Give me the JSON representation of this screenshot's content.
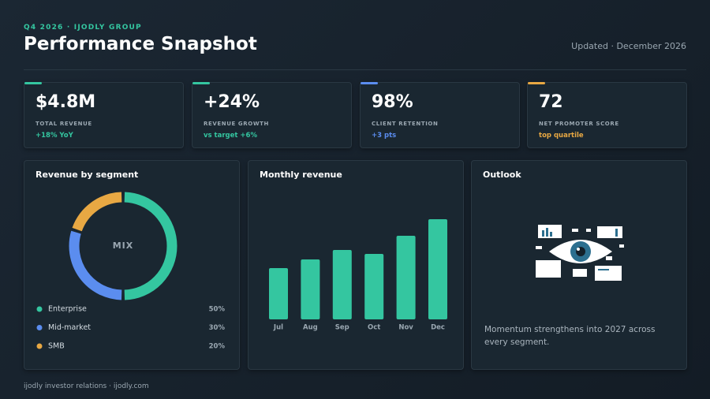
{
  "header": {
    "eyebrow": "Q4 2026 · IJODLY GROUP",
    "title": "Performance Snapshot",
    "updated": "Updated · December 2026"
  },
  "kpis": [
    {
      "value": "$4.8M",
      "label": "TOTAL REVENUE",
      "note": "+18% YoY",
      "color": "#34c6a0"
    },
    {
      "value": "+24%",
      "label": "REVENUE GROWTH",
      "note": "vs target +6%",
      "color": "#34c6a0"
    },
    {
      "value": "98%",
      "label": "CLIENT RETENTION",
      "note": "+3 pts",
      "color": "#5b8def"
    },
    {
      "value": "72",
      "label": "NET PROMOTER SCORE",
      "note": "top quartile",
      "color": "#e8a843"
    }
  ],
  "chart_data": [
    {
      "type": "donut",
      "title": "Revenue by segment",
      "center_label": "MIX",
      "categories": [
        "Enterprise",
        "Mid-market",
        "SMB"
      ],
      "values": [
        50,
        30,
        20
      ],
      "value_labels": [
        "50%",
        "30%",
        "20%"
      ],
      "colors": [
        "#34c6a0",
        "#5b8def",
        "#e8a843"
      ]
    },
    {
      "type": "bar",
      "title": "Monthly revenue",
      "categories": [
        "Jul",
        "Aug",
        "Sep",
        "Oct",
        "Nov",
        "Dec"
      ],
      "values": [
        65,
        76,
        88,
        83,
        106,
        127
      ],
      "color": "#34c6a0",
      "ylim": [
        0,
        130
      ]
    }
  ],
  "outlook": {
    "title": "Outlook",
    "text": "Momentum strengthens into 2027 across every segment."
  },
  "footer": "ijodly investor relations · ijodly.com"
}
